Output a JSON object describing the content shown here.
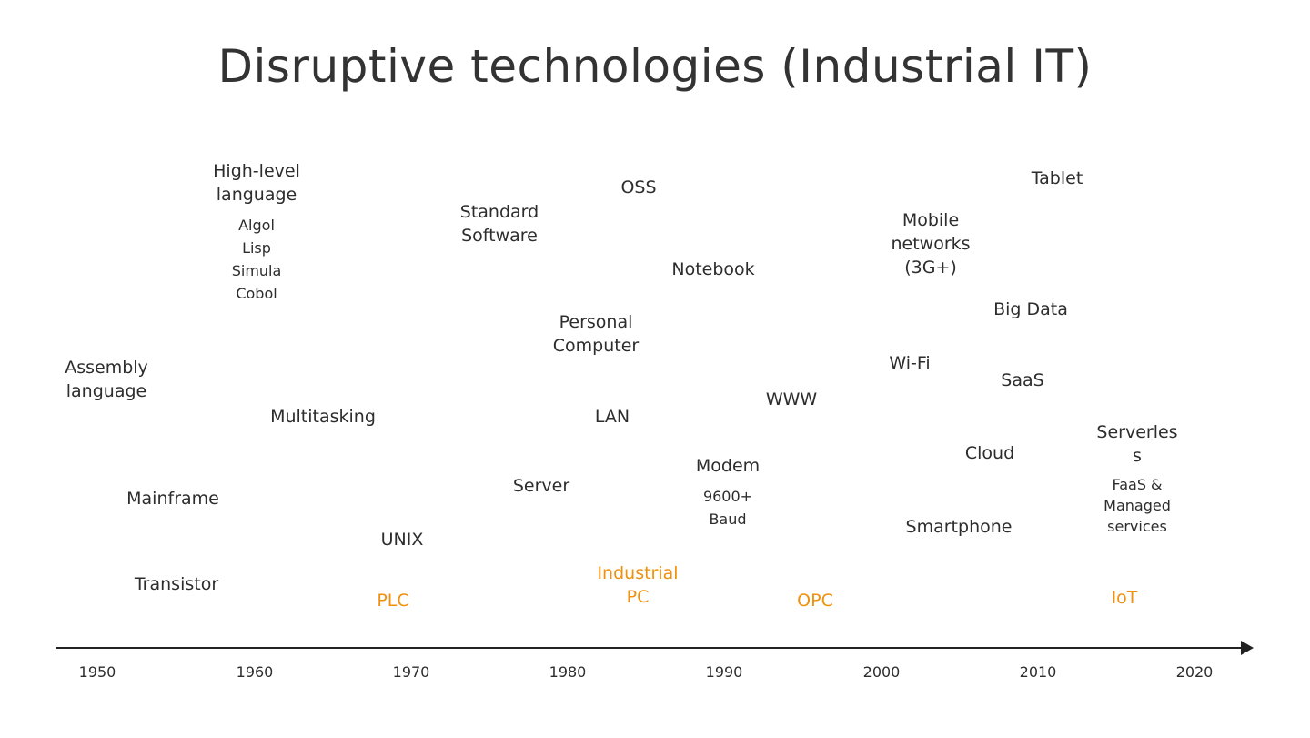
{
  "title": "Disruptive technologies (Industrial IT)",
  "colors": {
    "text": "#2d2d2d",
    "industrial_highlight": "#f0900c",
    "axis": "#222222"
  },
  "timeline": {
    "years": [
      "1950",
      "1960",
      "1970",
      "1980",
      "1990",
      "2000",
      "2010",
      "2020"
    ]
  },
  "items": {
    "high_level_language": [
      "High-level",
      "language"
    ],
    "languages": [
      "Algol",
      "Lisp",
      "Simula",
      "Cobol"
    ],
    "assembly_language": [
      "Assembly",
      "language"
    ],
    "multitasking": "Multitasking",
    "mainframe": "Mainframe",
    "transistor": "Transistor",
    "unix": "UNIX",
    "plc": "PLC",
    "standard_software": [
      "Standard",
      "Software"
    ],
    "server": "Server",
    "oss": "OSS",
    "personal_computer": [
      "Personal",
      "Computer"
    ],
    "lan": "LAN",
    "industrial_pc": [
      "Industrial",
      "PC"
    ],
    "notebook": "Notebook",
    "modem": "Modem",
    "modem_speed": [
      "9600+",
      "Baud"
    ],
    "www": "WWW",
    "opc": "OPC",
    "mobile_networks": [
      "Mobile",
      "networks",
      "(3G+)"
    ],
    "wifi": "Wi-Fi",
    "smartphone": "Smartphone",
    "cloud": "Cloud",
    "tablet": "Tablet",
    "big_data": "Big Data",
    "saas": "SaaS",
    "serverless": [
      "Serverles",
      "s"
    ],
    "faas": [
      "FaaS &",
      "Managed",
      "services"
    ],
    "iot": "IoT"
  }
}
